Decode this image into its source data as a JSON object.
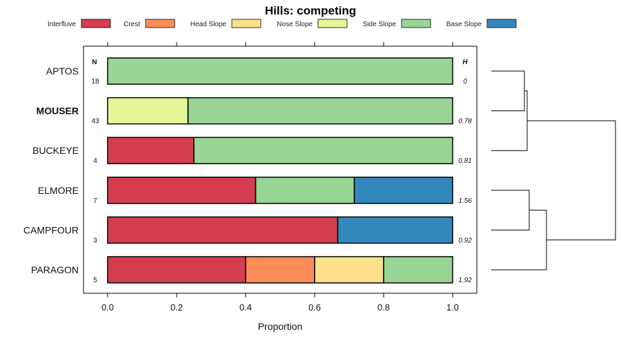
{
  "chart_data": {
    "type": "bar",
    "stacked": true,
    "orientation": "horizontal",
    "title": "Hills: competing",
    "xlabel": "Proportion",
    "xlim": [
      0,
      1
    ],
    "xticks": [
      "0.0",
      "0.2",
      "0.4",
      "0.6",
      "0.8",
      "1.0"
    ],
    "n_header": "N",
    "h_header": "H",
    "legend_placement": "top",
    "series": [
      {
        "name": "Interfluve",
        "color": "#d53e4f"
      },
      {
        "name": "Crest",
        "color": "#fc8d59"
      },
      {
        "name": "Head Slope",
        "color": "#fee08b"
      },
      {
        "name": "Nose Slope",
        "color": "#e6f598"
      },
      {
        "name": "Side Slope",
        "color": "#99d594"
      },
      {
        "name": "Base Slope",
        "color": "#3288bd"
      }
    ],
    "rows": [
      {
        "name": "APTOS",
        "bold": false,
        "n": "18",
        "h": "0",
        "values": [
          0,
          0,
          0,
          0,
          1,
          0
        ]
      },
      {
        "name": "MOUSER",
        "bold": true,
        "n": "43",
        "h": "0.78",
        "values": [
          0,
          0,
          0,
          0.233,
          0.767,
          0
        ]
      },
      {
        "name": "BUCKEYE",
        "bold": false,
        "n": "4",
        "h": "0.81",
        "values": [
          0.25,
          0,
          0,
          0,
          0.75,
          0
        ]
      },
      {
        "name": "ELMORE",
        "bold": false,
        "n": "7",
        "h": "1.56",
        "values": [
          0.429,
          0,
          0,
          0,
          0.286,
          0.285
        ]
      },
      {
        "name": "CAMPFOUR",
        "bold": false,
        "n": "3",
        "h": "0.92",
        "values": [
          0.667,
          0,
          0,
          0,
          0,
          0.333
        ]
      },
      {
        "name": "PARAGON",
        "bold": false,
        "n": "5",
        "h": "1.92",
        "values": [
          0.4,
          0.2,
          0.2,
          0,
          0.2,
          0
        ]
      }
    ],
    "dendrogram": {
      "merges": [
        {
          "a": "APTOS",
          "b": "MOUSER",
          "height": 0.1
        },
        {
          "a": "ELMORE",
          "b": "CAMPFOUR",
          "height": 0.3
        },
        {
          "a": "grp1",
          "b": "BUCKEYE",
          "height": 0.25
        },
        {
          "a": "grp2",
          "b": "PARAGON",
          "height": 0.4
        },
        {
          "a": "grp3",
          "b": "grp4",
          "height": 1.0
        }
      ]
    }
  }
}
